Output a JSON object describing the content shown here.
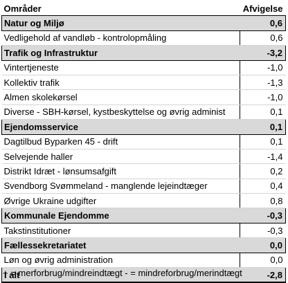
{
  "header": {
    "name": "Områder",
    "value": "Afvigelse"
  },
  "sections": [
    {
      "title": "Natur og Miljø",
      "value": "0,6",
      "items": [
        {
          "label": "Vedligehold af vandløb - kontrolopmåling",
          "value": "0,6"
        }
      ]
    },
    {
      "title": "Trafik og Infrastruktur",
      "value": "-3,2",
      "items": [
        {
          "label": "Vintertjeneste",
          "value": "-1,0"
        },
        {
          "label": "Kollektiv trafik",
          "value": "-1,3"
        },
        {
          "label": "Almen skolekørsel",
          "value": "-1,0"
        },
        {
          "label": "Diverse - SBH-kørsel, kystbeskyttelse og øvrig administ",
          "value": "0,1"
        }
      ]
    },
    {
      "title": "Ejendomsservice",
      "value": "0,1",
      "items": [
        {
          "label": "Dagtilbud Byparken 45  - drift",
          "value": "0,1"
        },
        {
          "label": "Selvejende haller",
          "value": "-1,4"
        },
        {
          "label": "Distrikt Idræt - lønsumsafgift",
          "value": "0,2"
        },
        {
          "label": "Svendborg Svømmeland - manglende lejeindtæger",
          "value": "0,4"
        },
        {
          "label": "Øvrige Ukraine udgifter",
          "value": "0,8"
        }
      ]
    },
    {
      "title": "Kommunale Ejendomme",
      "value": "-0,3",
      "items": [
        {
          "label": "Takstinstitutioner",
          "value": "-0,3"
        }
      ]
    },
    {
      "title": "Fællessekretariatet",
      "value": "0,0",
      "items": [
        {
          "label": "Løn og øvrig administration",
          "value": "0,0"
        }
      ]
    }
  ],
  "total": {
    "label": "I alt",
    "value": "-2,8"
  },
  "footnote": "+ = merforbrug/mindreindtægt - = mindreforbrug/merindtægt"
}
